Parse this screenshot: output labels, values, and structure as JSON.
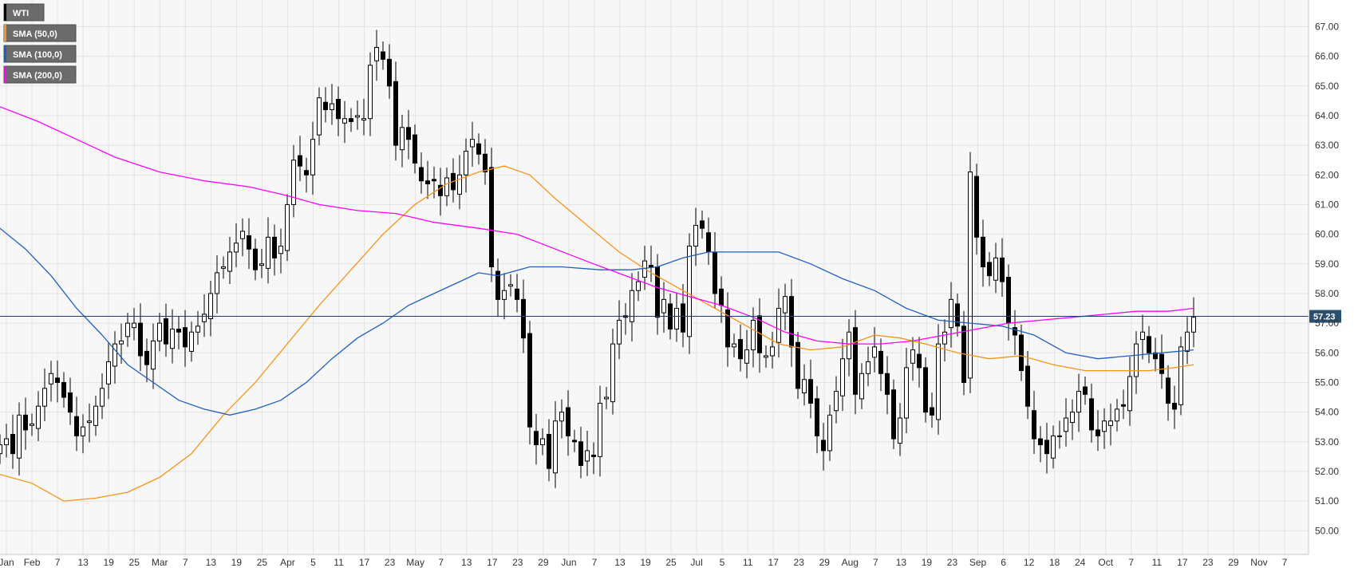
{
  "chart_data": {
    "type": "candlestick",
    "symbol": "WTI",
    "ylim": [
      49.2,
      67.9
    ],
    "y_ticks": [
      "50.00",
      "51.00",
      "52.00",
      "53.00",
      "54.00",
      "55.00",
      "56.00",
      "57.00",
      "58.00",
      "59.00",
      "60.00",
      "61.00",
      "62.00",
      "63.00",
      "64.00",
      "65.00",
      "66.00",
      "67.00"
    ],
    "x_ticks": [
      "Jan",
      "Feb",
      "7",
      "13",
      "19",
      "25",
      "Mar",
      "7",
      "13",
      "19",
      "25",
      "Apr",
      "5",
      "11",
      "17",
      "23",
      "May",
      "7",
      "13",
      "17",
      "23",
      "29",
      "Jun",
      "7",
      "13",
      "19",
      "25",
      "Jul",
      "5",
      "11",
      "17",
      "23",
      "29",
      "Aug",
      "7",
      "13",
      "19",
      "23",
      "Sep",
      "6",
      "12",
      "18",
      "24",
      "Oct",
      "7",
      "11",
      "17",
      "23",
      "29",
      "Nov",
      "7"
    ],
    "last_price": 57.23,
    "last_price_label": "57.23",
    "colors": {
      "up": "#ffffff",
      "down": "#000000",
      "sma50": "#f7931a",
      "sma100": "#1f5fbf",
      "sma200": "#ff00ff",
      "price_line": "#1a3f6b",
      "price_tag": "#2b4f6e",
      "background": "#f7f7f7",
      "grid": "#e3e3e3"
    },
    "legend": [
      {
        "label": "WTI",
        "color": "#000000"
      },
      {
        "label": "SMA (50,0)",
        "color": "#f7931a"
      },
      {
        "label": "SMA (100,0)",
        "color": "#1f5fbf"
      },
      {
        "label": "SMA (200,0)",
        "color": "#ff00ff"
      }
    ],
    "closes": [
      [
        0,
        52.9
      ],
      [
        2,
        53.1
      ],
      [
        4,
        52.6
      ],
      [
        6,
        53.9
      ],
      [
        8,
        53.4
      ],
      [
        10,
        53.6
      ],
      [
        12,
        54.2
      ],
      [
        14,
        54.8
      ],
      [
        16,
        55.3
      ],
      [
        18,
        55.0
      ],
      [
        20,
        54.5
      ],
      [
        22,
        54.0
      ],
      [
        24,
        53.2
      ],
      [
        26,
        53.5
      ],
      [
        28,
        53.7
      ],
      [
        30,
        54.2
      ],
      [
        32,
        54.8
      ],
      [
        34,
        55.7
      ],
      [
        36,
        56.3
      ],
      [
        38,
        56.4
      ],
      [
        40,
        57.0
      ],
      [
        42,
        57.0
      ],
      [
        44,
        55.9
      ],
      [
        46,
        55.6
      ],
      [
        48,
        56.4
      ],
      [
        50,
        57.0
      ],
      [
        52,
        56.3
      ],
      [
        54,
        56.8
      ],
      [
        56,
        56.7
      ],
      [
        58,
        56.2
      ],
      [
        60,
        56.7
      ],
      [
        62,
        56.9
      ],
      [
        64,
        57.3
      ],
      [
        66,
        58.0
      ],
      [
        68,
        58.7
      ],
      [
        70,
        58.9
      ],
      [
        72,
        59.4
      ],
      [
        74,
        59.7
      ],
      [
        76,
        60.1
      ],
      [
        78,
        59.5
      ],
      [
        80,
        58.8
      ],
      [
        82,
        59.0
      ],
      [
        84,
        59.9
      ],
      [
        86,
        59.2
      ],
      [
        88,
        59.6
      ],
      [
        90,
        61.0
      ],
      [
        92,
        62.5
      ],
      [
        94,
        62.3
      ],
      [
        96,
        62.0
      ],
      [
        98,
        63.2
      ],
      [
        100,
        64.6
      ],
      [
        102,
        64.2
      ],
      [
        104,
        64.4
      ],
      [
        106,
        63.9
      ],
      [
        108,
        63.9
      ],
      [
        110,
        63.8
      ],
      [
        112,
        64.0
      ],
      [
        114,
        63.9
      ],
      [
        116,
        65.7
      ],
      [
        118,
        66.3
      ],
      [
        120,
        65.9
      ],
      [
        122,
        65.0
      ],
      [
        124,
        63.0
      ],
      [
        126,
        63.6
      ],
      [
        128,
        63.2
      ],
      [
        130,
        62.4
      ],
      [
        132,
        61.8
      ],
      [
        134,
        61.7
      ],
      [
        136,
        61.8
      ],
      [
        138,
        61.3
      ],
      [
        140,
        61.9
      ],
      [
        142,
        61.5
      ],
      [
        144,
        62.0
      ],
      [
        146,
        62.8
      ],
      [
        148,
        63.2
      ],
      [
        150,
        62.7
      ],
      [
        152,
        62.1
      ],
      [
        154,
        58.9
      ],
      [
        156,
        57.8
      ],
      [
        158,
        58.1
      ],
      [
        160,
        58.3
      ],
      [
        162,
        57.8
      ],
      [
        164,
        56.5
      ],
      [
        166,
        53.5
      ],
      [
        168,
        52.9
      ],
      [
        170,
        53.1
      ],
      [
        172,
        52.1
      ],
      [
        174,
        53.7
      ],
      [
        176,
        54.0
      ],
      [
        178,
        53.2
      ],
      [
        180,
        53.0
      ],
      [
        182,
        52.2
      ],
      [
        184,
        52.7
      ],
      [
        186,
        52.5
      ],
      [
        188,
        54.3
      ],
      [
        190,
        54.5
      ],
      [
        192,
        56.3
      ],
      [
        194,
        57.1
      ],
      [
        196,
        57.2
      ],
      [
        198,
        58.1
      ],
      [
        200,
        58.4
      ],
      [
        202,
        59.1
      ],
      [
        204,
        58.9
      ],
      [
        206,
        57.2
      ],
      [
        208,
        57.8
      ],
      [
        210,
        56.8
      ],
      [
        212,
        57.5
      ],
      [
        214,
        56.7
      ],
      [
        216,
        59.6
      ],
      [
        218,
        60.3
      ],
      [
        220,
        60.2
      ],
      [
        222,
        59.4
      ],
      [
        224,
        58.0
      ],
      [
        226,
        57.6
      ],
      [
        228,
        56.2
      ],
      [
        230,
        56.3
      ],
      [
        232,
        55.8
      ],
      [
        234,
        56.1
      ],
      [
        236,
        57.1
      ],
      [
        238,
        56.0
      ],
      [
        240,
        55.9
      ],
      [
        242,
        56.2
      ],
      [
        244,
        57.5
      ],
      [
        246,
        57.9
      ],
      [
        248,
        56.2
      ],
      [
        250,
        54.8
      ],
      [
        252,
        55.1
      ],
      [
        254,
        54.3
      ],
      [
        256,
        53.2
      ],
      [
        258,
        52.7
      ],
      [
        260,
        53.9
      ],
      [
        262,
        54.7
      ],
      [
        264,
        55.8
      ],
      [
        266,
        56.7
      ],
      [
        268,
        54.6
      ],
      [
        270,
        55.3
      ],
      [
        272,
        55.7
      ],
      [
        274,
        56.2
      ],
      [
        276,
        55.3
      ],
      [
        278,
        54.6
      ],
      [
        280,
        53.1
      ],
      [
        282,
        53.8
      ],
      [
        284,
        55.5
      ],
      [
        286,
        56.1
      ],
      [
        288,
        55.5
      ],
      [
        290,
        54.0
      ],
      [
        292,
        53.9
      ],
      [
        294,
        56.3
      ],
      [
        296,
        56.7
      ],
      [
        298,
        57.8
      ],
      [
        300,
        56.9
      ],
      [
        302,
        55.0
      ],
      [
        304,
        62.1
      ],
      [
        306,
        59.9
      ],
      [
        308,
        58.9
      ],
      [
        310,
        58.6
      ],
      [
        312,
        59.2
      ],
      [
        314,
        58.4
      ],
      [
        316,
        57.0
      ],
      [
        318,
        56.6
      ],
      [
        320,
        55.4
      ],
      [
        322,
        54.2
      ],
      [
        324,
        53.1
      ],
      [
        326,
        52.9
      ],
      [
        328,
        52.6
      ],
      [
        330,
        53.2
      ],
      [
        332,
        53.2
      ],
      [
        334,
        53.8
      ],
      [
        336,
        54.0
      ],
      [
        338,
        54.7
      ],
      [
        340,
        54.6
      ],
      [
        342,
        53.4
      ],
      [
        344,
        53.2
      ],
      [
        346,
        53.7
      ],
      [
        348,
        53.7
      ],
      [
        350,
        54.1
      ],
      [
        352,
        54.2
      ],
      [
        354,
        55.2
      ],
      [
        356,
        56.3
      ],
      [
        358,
        56.7
      ],
      [
        360,
        56.0
      ],
      [
        362,
        55.8
      ],
      [
        364,
        55.3
      ],
      [
        366,
        54.3
      ],
      [
        368,
        54.1
      ],
      [
        370,
        56.2
      ],
      [
        372,
        56.7
      ],
      [
        374,
        57.2
      ]
    ],
    "sma50": [
      [
        0,
        51.9
      ],
      [
        10,
        51.6
      ],
      [
        20,
        51.0
      ],
      [
        30,
        51.1
      ],
      [
        40,
        51.3
      ],
      [
        50,
        51.8
      ],
      [
        60,
        52.6
      ],
      [
        70,
        53.9
      ],
      [
        80,
        55.0
      ],
      [
        90,
        56.3
      ],
      [
        100,
        57.6
      ],
      [
        110,
        58.8
      ],
      [
        120,
        60.0
      ],
      [
        130,
        61.0
      ],
      [
        140,
        61.7
      ],
      [
        150,
        62.1
      ],
      [
        158,
        62.3
      ],
      [
        166,
        62.0
      ],
      [
        174,
        61.2
      ],
      [
        184,
        60.3
      ],
      [
        194,
        59.4
      ],
      [
        204,
        58.7
      ],
      [
        214,
        58.1
      ],
      [
        224,
        57.5
      ],
      [
        234,
        56.9
      ],
      [
        244,
        56.3
      ],
      [
        254,
        56.1
      ],
      [
        264,
        56.2
      ],
      [
        274,
        56.6
      ],
      [
        282,
        56.5
      ],
      [
        290,
        56.3
      ],
      [
        300,
        56.0
      ],
      [
        310,
        55.8
      ],
      [
        320,
        55.9
      ],
      [
        330,
        55.6
      ],
      [
        340,
        55.4
      ],
      [
        350,
        55.4
      ],
      [
        360,
        55.4
      ],
      [
        368,
        55.5
      ],
      [
        374,
        55.6
      ]
    ],
    "sma100": [
      [
        0,
        60.2
      ],
      [
        8,
        59.5
      ],
      [
        16,
        58.6
      ],
      [
        24,
        57.5
      ],
      [
        32,
        56.6
      ],
      [
        40,
        55.6
      ],
      [
        48,
        55.0
      ],
      [
        56,
        54.4
      ],
      [
        64,
        54.1
      ],
      [
        72,
        53.9
      ],
      [
        80,
        54.1
      ],
      [
        88,
        54.4
      ],
      [
        96,
        55.0
      ],
      [
        104,
        55.8
      ],
      [
        112,
        56.5
      ],
      [
        120,
        57.0
      ],
      [
        128,
        57.6
      ],
      [
        136,
        58.0
      ],
      [
        144,
        58.4
      ],
      [
        150,
        58.7
      ],
      [
        156,
        58.6
      ],
      [
        166,
        58.9
      ],
      [
        176,
        58.9
      ],
      [
        188,
        58.8
      ],
      [
        198,
        58.8
      ],
      [
        206,
        58.9
      ],
      [
        214,
        59.2
      ],
      [
        222,
        59.4
      ],
      [
        232,
        59.4
      ],
      [
        244,
        59.4
      ],
      [
        254,
        59.0
      ],
      [
        264,
        58.5
      ],
      [
        274,
        58.1
      ],
      [
        284,
        57.5
      ],
      [
        294,
        57.1
      ],
      [
        304,
        57.0
      ],
      [
        314,
        56.9
      ],
      [
        324,
        56.6
      ],
      [
        334,
        56.0
      ],
      [
        344,
        55.8
      ],
      [
        354,
        55.9
      ],
      [
        364,
        56.0
      ],
      [
        374,
        56.1
      ]
    ],
    "sma200": [
      [
        0,
        64.3
      ],
      [
        12,
        63.8
      ],
      [
        24,
        63.2
      ],
      [
        36,
        62.6
      ],
      [
        50,
        62.1
      ],
      [
        64,
        61.8
      ],
      [
        78,
        61.6
      ],
      [
        90,
        61.3
      ],
      [
        100,
        61.0
      ],
      [
        112,
        60.8
      ],
      [
        124,
        60.7
      ],
      [
        136,
        60.4
      ],
      [
        150,
        60.2
      ],
      [
        162,
        60.0
      ],
      [
        174,
        59.5
      ],
      [
        186,
        59.0
      ],
      [
        196,
        58.6
      ],
      [
        206,
        58.2
      ],
      [
        216,
        57.9
      ],
      [
        226,
        57.6
      ],
      [
        236,
        57.2
      ],
      [
        246,
        56.7
      ],
      [
        256,
        56.4
      ],
      [
        266,
        56.3
      ],
      [
        276,
        56.3
      ],
      [
        286,
        56.4
      ],
      [
        296,
        56.6
      ],
      [
        306,
        56.8
      ],
      [
        316,
        57.0
      ],
      [
        326,
        57.1
      ],
      [
        336,
        57.2
      ],
      [
        346,
        57.3
      ],
      [
        356,
        57.4
      ],
      [
        366,
        57.4
      ],
      [
        374,
        57.5
      ]
    ]
  }
}
